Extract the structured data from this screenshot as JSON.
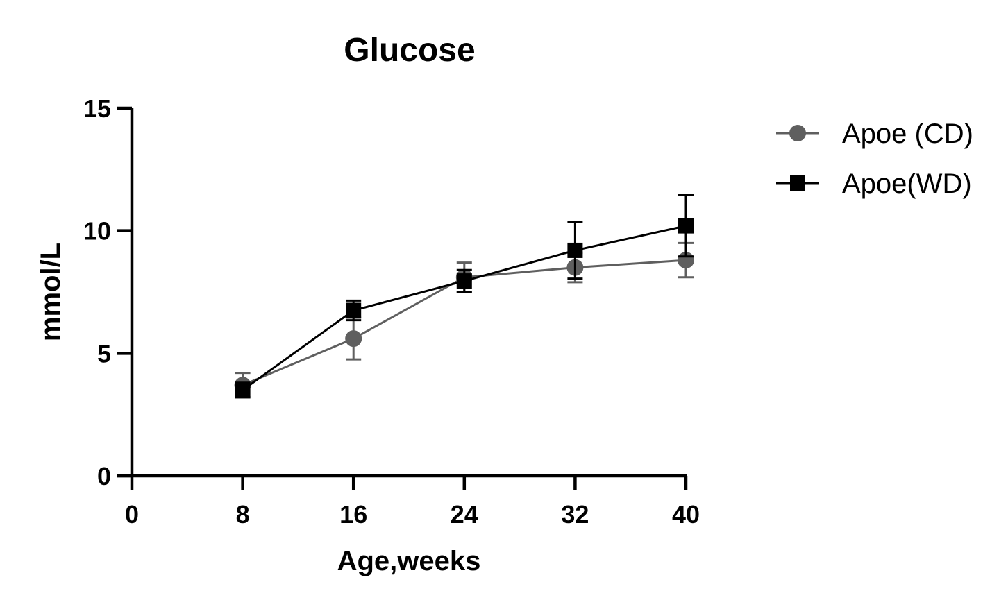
{
  "chart_data": {
    "type": "line",
    "title": "Glucose",
    "xlabel": "Age,weeks",
    "ylabel": "mmol/L",
    "xlim": [
      0,
      40
    ],
    "ylim": [
      0,
      15
    ],
    "xticks": [
      0,
      8,
      16,
      24,
      32,
      40
    ],
    "yticks": [
      0,
      5,
      10,
      15
    ],
    "xtick_labels": [
      "0",
      "8",
      "16",
      "24",
      "32",
      "40"
    ],
    "ytick_labels": [
      "0",
      "5",
      "10",
      "15"
    ],
    "grid": false,
    "legend_position": "top-right",
    "series": [
      {
        "name": "Apoe (CD)",
        "marker": "circle",
        "color": "#5f5f5f",
        "x": [
          8,
          16,
          24,
          32,
          40
        ],
        "y": [
          3.7,
          5.6,
          8.1,
          8.5,
          8.8
        ],
        "error": [
          0.5,
          0.85,
          0.6,
          0.6,
          0.7
        ]
      },
      {
        "name": "Apoe(WD)",
        "marker": "square",
        "color": "#000000",
        "x": [
          8,
          16,
          24,
          32,
          40
        ],
        "y": [
          3.5,
          6.75,
          7.95,
          9.2,
          10.2
        ],
        "error": [
          0.3,
          0.4,
          0.45,
          1.15,
          1.25
        ]
      }
    ]
  }
}
